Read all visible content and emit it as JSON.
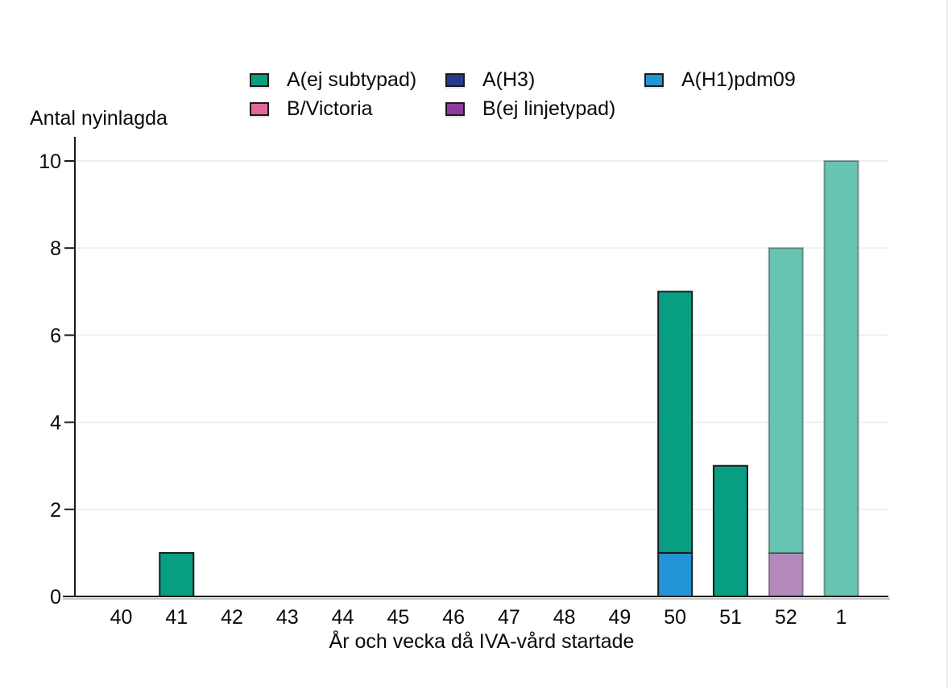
{
  "colors": {
    "background": "#ffffff",
    "axis": "#1a1a1a",
    "axis_shadow": "#c6c6c6",
    "grid": "#eaf2f4",
    "preliminary_stroke": "rgba(0,0,0,0.35)"
  },
  "chart_data": {
    "type": "bar",
    "stacked": true,
    "title": "",
    "ylabel": "Antal nyinlagda",
    "xlabel": "År och vecka då IVA-vård startade",
    "categories": [
      "40",
      "41",
      "42",
      "43",
      "44",
      "45",
      "46",
      "47",
      "48",
      "49",
      "50",
      "51",
      "52",
      "1"
    ],
    "ylim": [
      0,
      10
    ],
    "yticks": [
      0,
      2,
      4,
      6,
      8,
      10
    ],
    "grid": true,
    "legend_position": "top",
    "series": [
      {
        "name": "A(ej subtypad)",
        "color": "#089e81",
        "faded_color": "#67c3b2"
      },
      {
        "name": "A(H3)",
        "color": "#253a8e",
        "faded_color": "#7c88bb"
      },
      {
        "name": "A(H1)pdm09",
        "color": "#2295d6",
        "faded_color": "#7abfe6"
      },
      {
        "name": "B/Victoria",
        "color": "#e0679e",
        "faded_color": "#eca4c4"
      },
      {
        "name": "B(ej linjetypad)",
        "color": "#8d3c9b",
        "faded_color": "#b288bd"
      }
    ],
    "legend_rows": [
      [
        "A(ej subtypad)",
        "A(H3)",
        "A(H1)pdm09"
      ],
      [
        "B/Victoria",
        "B(ej linjetypad)"
      ]
    ],
    "bars": [
      {
        "category": "40",
        "preliminary": false,
        "segments": []
      },
      {
        "category": "41",
        "preliminary": false,
        "segments": [
          {
            "series": "A(ej subtypad)",
            "value": 1
          }
        ]
      },
      {
        "category": "42",
        "preliminary": false,
        "segments": []
      },
      {
        "category": "43",
        "preliminary": false,
        "segments": []
      },
      {
        "category": "44",
        "preliminary": false,
        "segments": []
      },
      {
        "category": "45",
        "preliminary": false,
        "segments": []
      },
      {
        "category": "46",
        "preliminary": false,
        "segments": []
      },
      {
        "category": "47",
        "preliminary": false,
        "segments": []
      },
      {
        "category": "48",
        "preliminary": false,
        "segments": []
      },
      {
        "category": "49",
        "preliminary": false,
        "segments": []
      },
      {
        "category": "50",
        "preliminary": false,
        "segments": [
          {
            "series": "A(H1)pdm09",
            "value": 1
          },
          {
            "series": "A(ej subtypad)",
            "value": 6
          }
        ]
      },
      {
        "category": "51",
        "preliminary": false,
        "segments": [
          {
            "series": "A(ej subtypad)",
            "value": 3
          }
        ]
      },
      {
        "category": "52",
        "preliminary": true,
        "segments": [
          {
            "series": "B(ej linjetypad)",
            "value": 1
          },
          {
            "series": "A(ej subtypad)",
            "value": 7
          }
        ]
      },
      {
        "category": "1",
        "preliminary": true,
        "segments": [
          {
            "series": "A(ej subtypad)",
            "value": 10
          }
        ]
      }
    ]
  }
}
